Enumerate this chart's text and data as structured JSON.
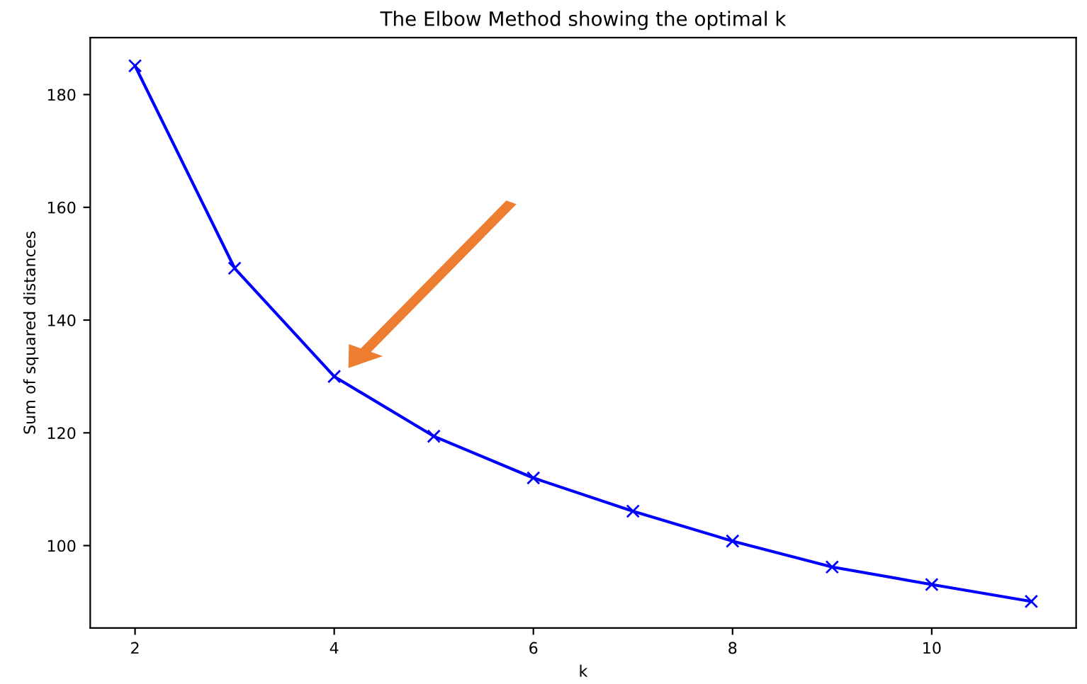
{
  "chart_data": {
    "type": "line",
    "title": "The Elbow Method showing the optimal k",
    "xlabel": "k",
    "ylabel": "Sum of squared distances",
    "x": [
      2,
      3,
      4,
      5,
      6,
      7,
      8,
      9,
      10,
      11
    ],
    "series": [
      {
        "color": "#0000ff",
        "values": [
          185.1,
          149.2,
          130.0,
          119.4,
          112.0,
          106.1,
          100.8,
          96.2,
          93.1,
          90.1
        ]
      }
    ],
    "marker": "cross",
    "line_style": "solid",
    "xlim": [
      1.55,
      11.45
    ],
    "ylim": [
      85.4,
      190.1
    ],
    "xticks": [
      2,
      4,
      6,
      8,
      10
    ],
    "yticks": [
      100,
      120,
      140,
      160,
      180
    ],
    "grid": false,
    "legend": false
  }
}
